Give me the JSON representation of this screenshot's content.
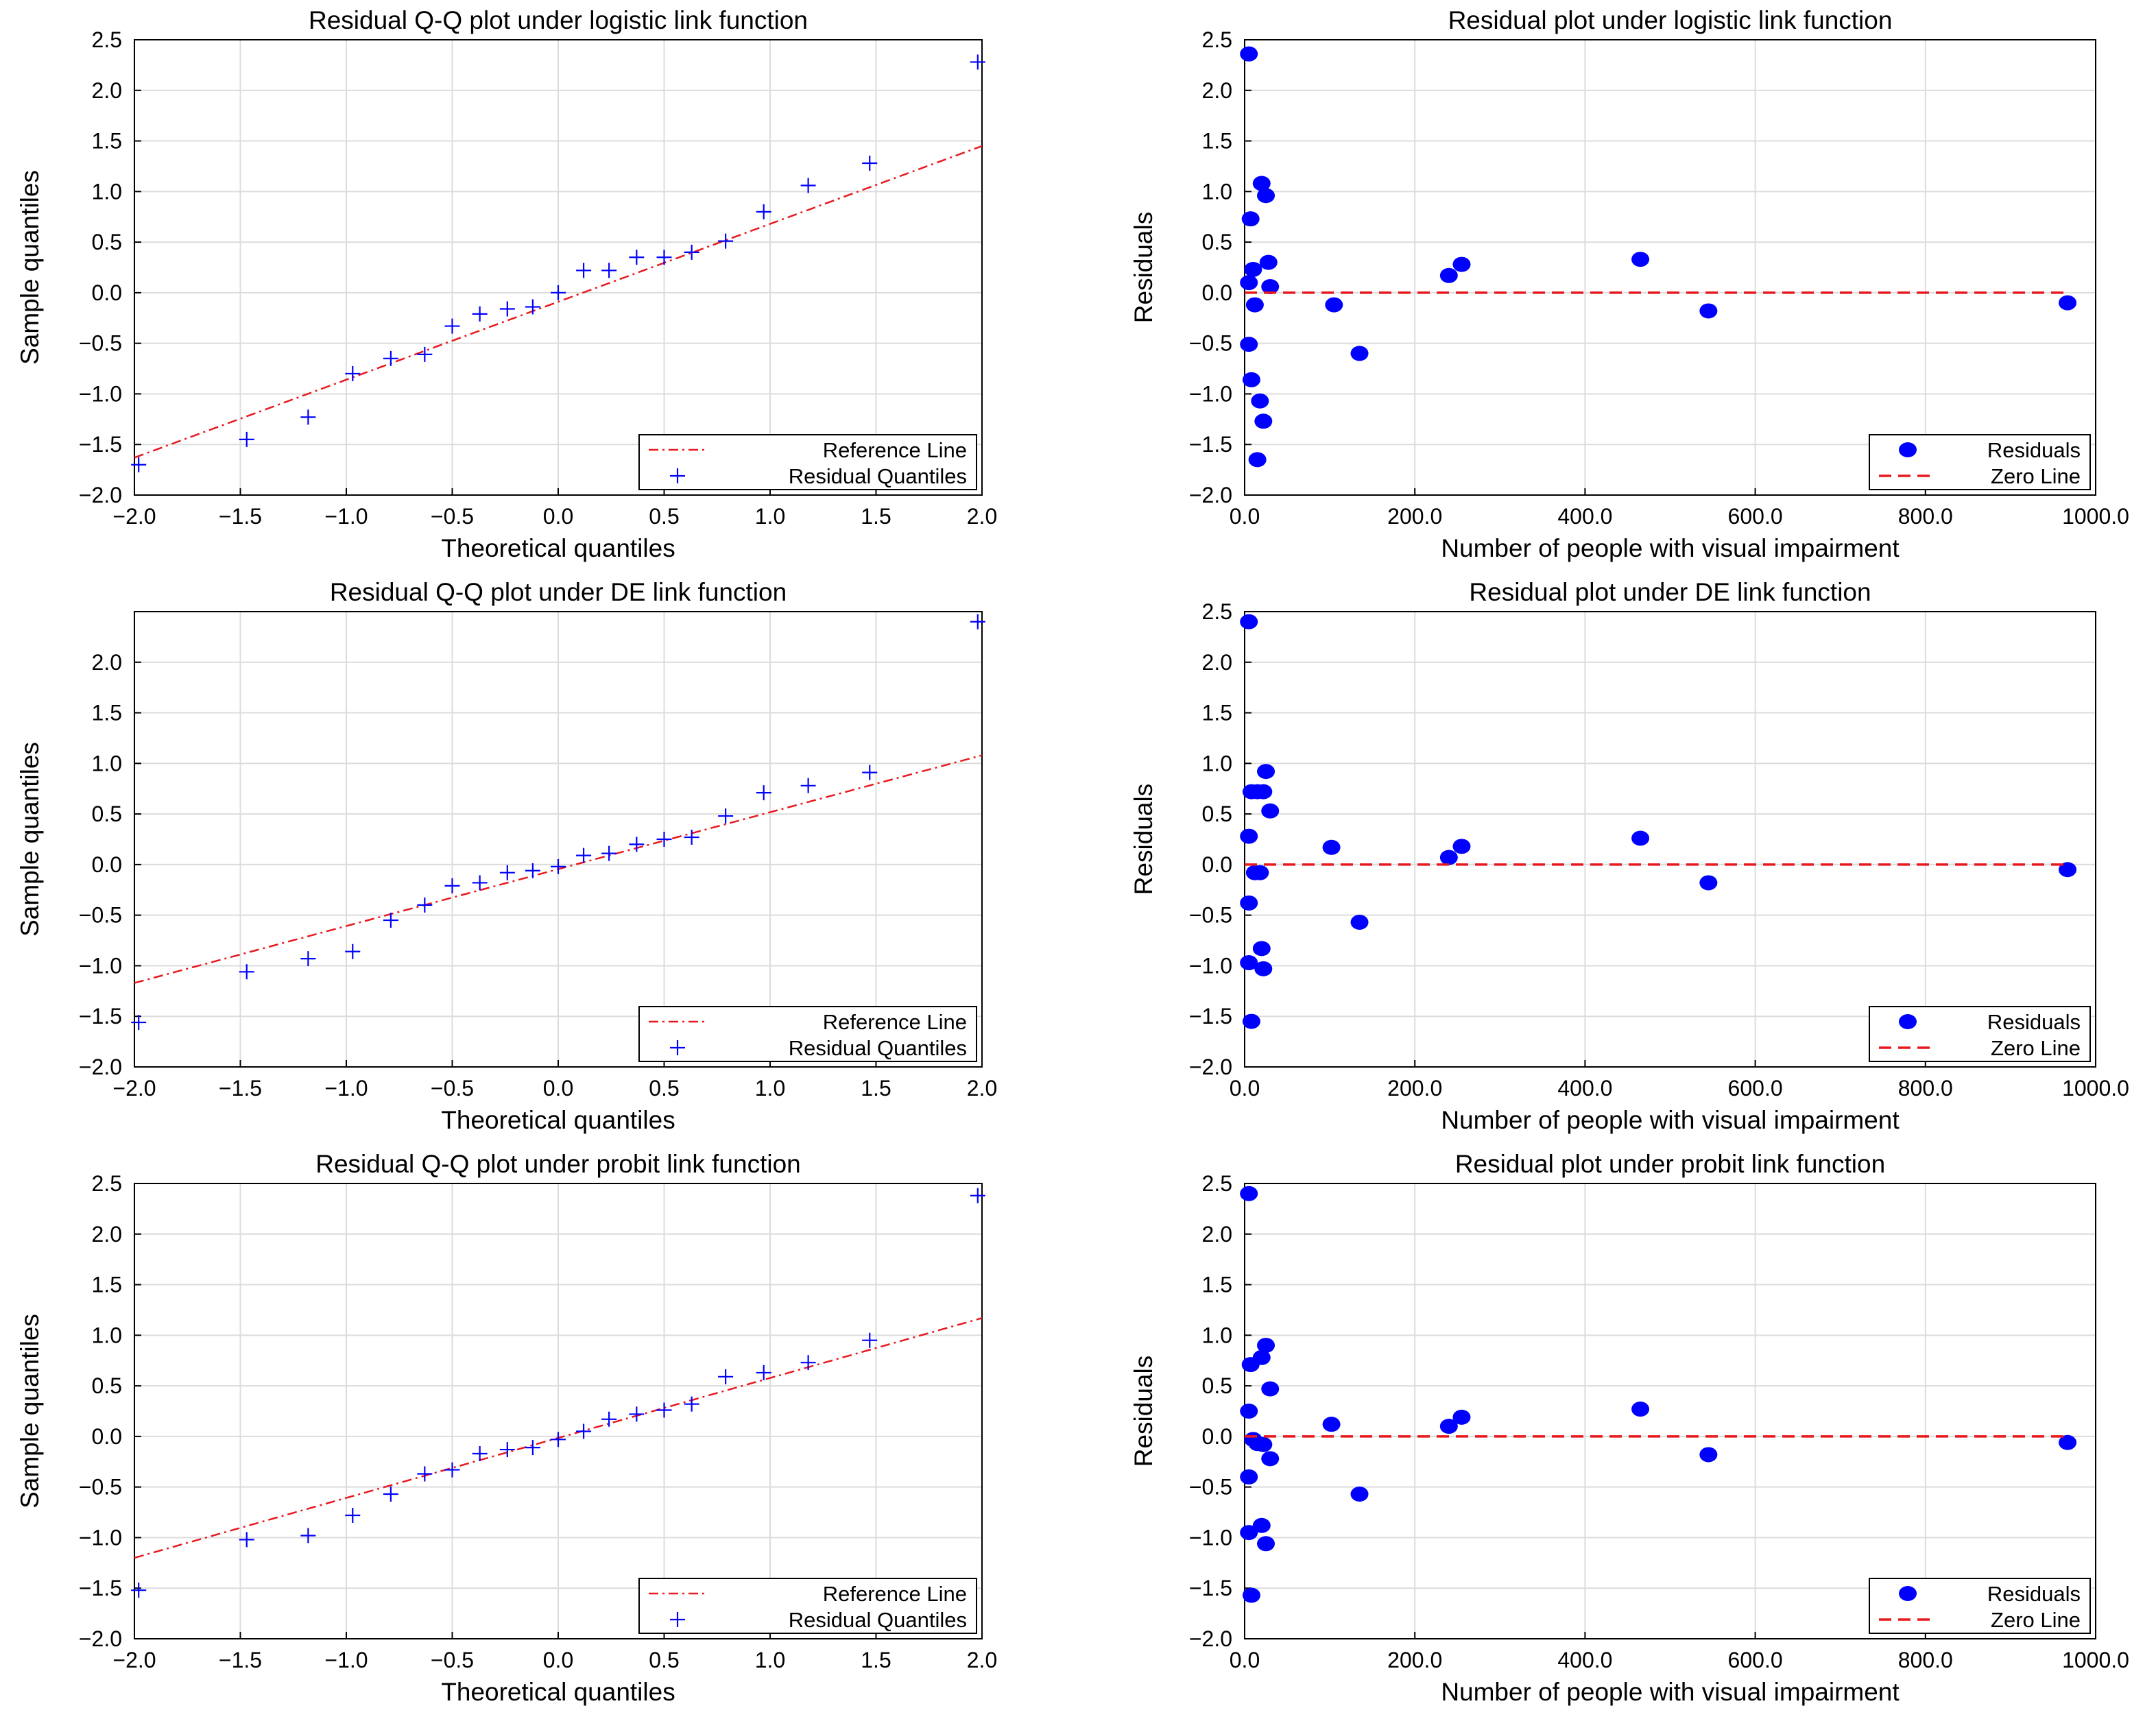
{
  "figure": {
    "background": "#ffffff",
    "grid_color": "#dcdcdc"
  },
  "chart_data": [
    {
      "type": "scatter",
      "title": "Residual Q-Q plot under logistic link function",
      "xlabel": "Theoretical quantiles",
      "ylabel": "Sample quantiles",
      "xlim": [
        -2.0,
        2.0
      ],
      "ylim": [
        -2.0,
        2.5
      ],
      "xticks": [
        -2.0,
        -1.5,
        -1.0,
        -0.5,
        0.0,
        0.5,
        1.0,
        1.5,
        2.0
      ],
      "yticks": [
        -2.0,
        -1.5,
        -1.0,
        -0.5,
        0.0,
        0.5,
        1.0,
        1.5,
        2.0,
        2.5
      ],
      "xtick_labels": [
        "−2.0",
        "−1.5",
        "−1.0",
        "−0.5",
        "0.0",
        "0.5",
        "1.0",
        "1.5",
        "2.0"
      ],
      "ytick_labels": [
        "−2.0",
        "−1.5",
        "−1.0",
        "−0.5",
        "0.0",
        "0.5",
        "1.0",
        "1.5",
        "2.0",
        "2.5"
      ],
      "grid": true,
      "legend_position": "bottom-right",
      "series": [
        {
          "name": "Reference Line",
          "kind": "line",
          "style": "dashdot",
          "color": "#e8191e",
          "x": [
            -2.0,
            2.0
          ],
          "y": [
            -1.63,
            1.45
          ]
        },
        {
          "name": "Residual Quantiles",
          "kind": "marker",
          "marker": "plus",
          "color": "#0000ff",
          "x": [
            -1.98,
            -1.47,
            -1.18,
            -0.97,
            -0.79,
            -0.63,
            -0.5,
            -0.37,
            -0.24,
            -0.12,
            0.0,
            0.12,
            0.24,
            0.37,
            0.5,
            0.63,
            0.79,
            0.97,
            1.18,
            1.47,
            1.98
          ],
          "y": [
            -1.7,
            -1.45,
            -1.23,
            -0.8,
            -0.65,
            -0.61,
            -0.33,
            -0.21,
            -0.16,
            -0.14,
            0.0,
            0.22,
            0.22,
            0.35,
            0.35,
            0.4,
            0.51,
            0.8,
            1.06,
            1.28,
            2.28
          ]
        }
      ]
    },
    {
      "type": "scatter",
      "title": "Residual plot under logistic link function",
      "xlabel": "Number of people with visual impairment",
      "ylabel": "Residuals",
      "xlim": [
        0,
        1000
      ],
      "ylim": [
        -2.0,
        2.5
      ],
      "xticks": [
        0,
        200,
        400,
        600,
        800,
        1000
      ],
      "yticks": [
        -2.0,
        -1.5,
        -1.0,
        -0.5,
        0.0,
        0.5,
        1.0,
        1.5,
        2.0,
        2.5
      ],
      "xtick_labels": [
        "0.0",
        "200.0",
        "400.0",
        "600.0",
        "800.0",
        "1000.0"
      ],
      "ytick_labels": [
        "−2.0",
        "−1.5",
        "−1.0",
        "−0.5",
        "0.0",
        "0.5",
        "1.0",
        "1.5",
        "2.0",
        "2.5"
      ],
      "grid": true,
      "legend_position": "bottom-right",
      "series": [
        {
          "name": "Residuals",
          "kind": "marker",
          "marker": "dot",
          "color": "#0000ff",
          "x": [
            5,
            5,
            7,
            10,
            5,
            8,
            20,
            28,
            12,
            15,
            18,
            22,
            30,
            25,
            105,
            135,
            240,
            255,
            465,
            545,
            967
          ],
          "y": [
            2.36,
            0.1,
            0.73,
            0.23,
            -0.51,
            -0.86,
            1.08,
            0.3,
            -0.12,
            -1.65,
            -1.07,
            -1.27,
            0.06,
            0.96,
            -0.12,
            -0.6,
            0.17,
            0.28,
            0.33,
            -0.18,
            -0.1
          ]
        },
        {
          "name": "Zero Line",
          "kind": "line",
          "style": "dashed",
          "color": "#e8191e",
          "x": [
            0,
            967
          ],
          "y": [
            0,
            0
          ]
        }
      ]
    },
    {
      "type": "scatter",
      "title": "Residual Q-Q plot under DE link function",
      "xlabel": "Theoretical quantiles",
      "ylabel": "Sample quantiles",
      "xlim": [
        -2.0,
        2.0
      ],
      "ylim": [
        -2.0,
        2.5
      ],
      "xticks": [
        -2.0,
        -1.5,
        -1.0,
        -0.5,
        0.0,
        0.5,
        1.0,
        1.5,
        2.0
      ],
      "yticks": [
        -2.0,
        -1.5,
        -1.0,
        -0.5,
        0.0,
        0.5,
        1.0,
        1.5,
        2.0
      ],
      "xtick_labels": [
        "−2.0",
        "−1.5",
        "−1.0",
        "−0.5",
        "0.0",
        "0.5",
        "1.0",
        "1.5",
        "2.0"
      ],
      "ytick_labels": [
        "−2.0",
        "−1.5",
        "−1.0",
        "−0.5",
        "0.0",
        "0.5",
        "1.0",
        "1.5",
        "2.0"
      ],
      "grid": true,
      "legend_position": "bottom-right",
      "series": [
        {
          "name": "Reference Line",
          "kind": "line",
          "style": "dashdot",
          "color": "#e8191e",
          "x": [
            -2.0,
            2.0
          ],
          "y": [
            -1.17,
            1.08
          ]
        },
        {
          "name": "Residual Quantiles",
          "kind": "marker",
          "marker": "plus",
          "color": "#0000ff",
          "x": [
            -1.98,
            -1.47,
            -1.18,
            -0.97,
            -0.79,
            -0.63,
            -0.5,
            -0.37,
            -0.24,
            -0.12,
            0.0,
            0.12,
            0.24,
            0.37,
            0.5,
            0.63,
            0.79,
            0.97,
            1.18,
            1.47,
            1.98
          ],
          "y": [
            -1.56,
            -1.06,
            -0.93,
            -0.86,
            -0.55,
            -0.4,
            -0.21,
            -0.18,
            -0.08,
            -0.06,
            -0.02,
            0.09,
            0.11,
            0.2,
            0.25,
            0.27,
            0.48,
            0.71,
            0.78,
            0.91,
            2.4
          ]
        }
      ]
    },
    {
      "type": "scatter",
      "title": "Residual plot under DE link function",
      "xlabel": "Number of people with visual impairment",
      "ylabel": "Residuals",
      "xlim": [
        0,
        1000
      ],
      "ylim": [
        -2.0,
        2.5
      ],
      "xticks": [
        0,
        200,
        400,
        600,
        800,
        1000
      ],
      "yticks": [
        -2.0,
        -1.5,
        -1.0,
        -0.5,
        0.0,
        0.5,
        1.0,
        1.5,
        2.0,
        2.5
      ],
      "xtick_labels": [
        "0.0",
        "200.0",
        "400.0",
        "600.0",
        "800.0",
        "1000.0"
      ],
      "ytick_labels": [
        "−2.0",
        "−1.5",
        "−1.0",
        "−0.5",
        "0.0",
        "0.5",
        "1.0",
        "1.5",
        "2.0",
        "2.5"
      ],
      "grid": true,
      "legend_position": "bottom-right",
      "series": [
        {
          "name": "Residuals",
          "kind": "marker",
          "marker": "dot",
          "color": "#0000ff",
          "x": [
            5,
            5,
            8,
            15,
            22,
            5,
            12,
            8,
            18,
            25,
            30,
            20,
            5,
            22,
            102,
            135,
            240,
            255,
            465,
            545,
            967
          ],
          "y": [
            2.4,
            0.28,
            0.72,
            0.72,
            0.72,
            -0.38,
            -0.08,
            -1.55,
            -0.08,
            0.92,
            0.53,
            -0.83,
            -0.97,
            -1.03,
            0.17,
            -0.57,
            0.07,
            0.18,
            0.26,
            -0.18,
            -0.05
          ]
        },
        {
          "name": "Zero Line",
          "kind": "line",
          "style": "dashed",
          "color": "#e8191e",
          "x": [
            0,
            967
          ],
          "y": [
            0,
            0
          ]
        }
      ]
    },
    {
      "type": "scatter",
      "title": "Residual Q-Q plot under probit link function",
      "xlabel": "Theoretical quantiles",
      "ylabel": "Sample quantiles",
      "xlim": [
        -2.0,
        2.0
      ],
      "ylim": [
        -2.0,
        2.5
      ],
      "xticks": [
        -2.0,
        -1.5,
        -1.0,
        -0.5,
        0.0,
        0.5,
        1.0,
        1.5,
        2.0
      ],
      "yticks": [
        -2.0,
        -1.5,
        -1.0,
        -0.5,
        0.0,
        0.5,
        1.0,
        1.5,
        2.0,
        2.5
      ],
      "xtick_labels": [
        "−2.0",
        "−1.5",
        "−1.0",
        "−0.5",
        "0.0",
        "0.5",
        "1.0",
        "1.5",
        "2.0"
      ],
      "ytick_labels": [
        "−2.0",
        "−1.5",
        "−1.0",
        "−0.5",
        "0.0",
        "0.5",
        "1.0",
        "1.5",
        "2.0",
        "2.5"
      ],
      "grid": true,
      "legend_position": "bottom-right",
      "series": [
        {
          "name": "Reference Line",
          "kind": "line",
          "style": "dashdot",
          "color": "#e8191e",
          "x": [
            -2.0,
            2.0
          ],
          "y": [
            -1.2,
            1.17
          ]
        },
        {
          "name": "Residual Quantiles",
          "kind": "marker",
          "marker": "plus",
          "color": "#0000ff",
          "x": [
            -1.98,
            -1.47,
            -1.18,
            -0.97,
            -0.79,
            -0.63,
            -0.5,
            -0.37,
            -0.24,
            -0.12,
            0.0,
            0.12,
            0.24,
            0.37,
            0.5,
            0.63,
            0.79,
            0.97,
            1.18,
            1.47,
            1.98
          ],
          "y": [
            -1.52,
            -1.02,
            -0.98,
            -0.78,
            -0.57,
            -0.37,
            -0.33,
            -0.17,
            -0.13,
            -0.11,
            -0.03,
            0.05,
            0.17,
            0.22,
            0.26,
            0.32,
            0.59,
            0.63,
            0.73,
            0.95,
            2.38
          ]
        }
      ]
    },
    {
      "type": "scatter",
      "title": "Residual plot under probit link function",
      "xlabel": "Number of people with visual impairment",
      "ylabel": "Residuals",
      "xlim": [
        0,
        1000
      ],
      "ylim": [
        -2.0,
        2.5
      ],
      "xticks": [
        0,
        200,
        400,
        600,
        800,
        1000
      ],
      "yticks": [
        -2.0,
        -1.5,
        -1.0,
        -0.5,
        0.0,
        0.5,
        1.0,
        1.5,
        2.0,
        2.5
      ],
      "xtick_labels": [
        "0.0",
        "200.0",
        "400.0",
        "600.0",
        "800.0",
        "1000.0"
      ],
      "ytick_labels": [
        "−2.0",
        "−1.5",
        "−1.0",
        "−0.5",
        "0.0",
        "0.5",
        "1.0",
        "1.5",
        "2.0",
        "2.5"
      ],
      "grid": true,
      "legend_position": "bottom-right",
      "series": [
        {
          "name": "Residuals",
          "kind": "marker",
          "marker": "dot",
          "color": "#0000ff",
          "x": [
            5,
            5,
            7,
            20,
            25,
            30,
            5,
            10,
            15,
            22,
            30,
            5,
            8,
            20,
            25,
            102,
            135,
            240,
            255,
            465,
            545,
            967
          ],
          "y": [
            2.4,
            0.25,
            0.71,
            0.78,
            0.9,
            0.47,
            -0.4,
            -0.03,
            -0.07,
            -0.08,
            -0.22,
            -0.95,
            -1.57,
            -0.88,
            -1.06,
            0.12,
            -0.57,
            0.1,
            0.19,
            0.27,
            -0.18,
            -0.06
          ]
        },
        {
          "name": "Zero Line",
          "kind": "line",
          "style": "dashed",
          "color": "#e8191e",
          "x": [
            0,
            967
          ],
          "y": [
            0,
            0
          ]
        }
      ]
    }
  ]
}
